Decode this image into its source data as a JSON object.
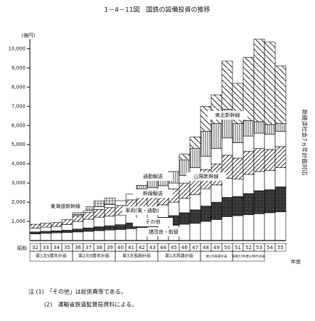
{
  "chart_data": {
    "type": "stacked-step",
    "title": "1－4－11図　国鉄の設備投資の推移",
    "y_unit": "(億円)",
    "x_prefix": "昭和",
    "x_suffix": "年度",
    "side_note": "新経済社会7ヵ年計画対応",
    "notes": [
      "注 (1)　「その他」は総係費等である。",
      "(2)　運輸省鉄道監督局資料による。"
    ],
    "plans": [
      "第1次5箇年計画",
      "第2次5箇年計画",
      "第3次長期計画",
      "第1次再建計画",
      "第2次再建計画",
      "昭和53年度以降の計画"
    ],
    "categories": [
      "32",
      "33",
      "34",
      "35",
      "36",
      "37",
      "38",
      "39",
      "40",
      "41",
      "42",
      "43",
      "44",
      "45",
      "46",
      "47",
      "48",
      "49",
      "50",
      "51",
      "52",
      "53",
      "54",
      "55"
    ],
    "ylim": [
      0,
      10500
    ],
    "yticks": [
      {
        "value": 1000,
        "label": "1,000"
      },
      {
        "value": 2000,
        "label": "2,000"
      },
      {
        "value": 3000,
        "label": "3,000"
      },
      {
        "value": 4000,
        "label": "4,000"
      },
      {
        "value": 5000,
        "label": "5,000"
      },
      {
        "value": 6000,
        "label": "6,000"
      },
      {
        "value": 7000,
        "label": "7,000"
      },
      {
        "value": 8000,
        "label": "8,000"
      },
      {
        "value": 9000,
        "label": "9,000"
      },
      {
        "value": 10000,
        "label": "10,000"
      }
    ],
    "series": [
      {
        "name": "諸改良・取替",
        "pattern": "white",
        "values": [
          350,
          380,
          400,
          420,
          450,
          480,
          520,
          550,
          580,
          620,
          680,
          720,
          760,
          800,
          850,
          900,
          1000,
          1100,
          1250,
          1300,
          1350,
          1400,
          1450,
          1500
        ]
      },
      {
        "name": "その他",
        "pattern": "dots",
        "values": [
          100,
          100,
          110,
          120,
          150,
          180,
          200,
          220,
          250,
          300,
          350,
          400,
          450,
          500,
          600,
          700,
          800,
          900,
          1000,
          1000,
          1100,
          1200,
          1200,
          1300
        ]
      },
      {
        "name": "車両(電・通勤)",
        "pattern": "white",
        "values": [
          200,
          220,
          230,
          300,
          400,
          450,
          500,
          500,
          500,
          600,
          650,
          650,
          650,
          700,
          750,
          800,
          900,
          900,
          1000,
          900,
          1000,
          1000,
          1000,
          1000
        ]
      },
      {
        "name": "幹線輸送",
        "pattern": "diag",
        "values": [
          200,
          200,
          200,
          250,
          300,
          350,
          400,
          450,
          500,
          600,
          700,
          700,
          700,
          700,
          800,
          900,
          1000,
          1100,
          1200,
          1100,
          1200,
          1200,
          1100,
          1100
        ]
      },
      {
        "name": "通勤輸送",
        "pattern": "white",
        "values": [
          0,
          0,
          0,
          0,
          50,
          100,
          150,
          150,
          250,
          300,
          300,
          300,
          300,
          300,
          400,
          500,
          700,
          800,
          900,
          800,
          800,
          800,
          800,
          800
        ]
      },
      {
        "name": "東海道新幹線",
        "pattern": "cross",
        "values": [
          0,
          0,
          0,
          0,
          100,
          200,
          300,
          350,
          0,
          0,
          0,
          0,
          0,
          0,
          0,
          0,
          0,
          0,
          0,
          0,
          0,
          0,
          0,
          0
        ]
      },
      {
        "name": "山陽新幹線",
        "pattern": "vert",
        "values": [
          0,
          0,
          0,
          0,
          0,
          0,
          0,
          0,
          0,
          0,
          200,
          400,
          500,
          600,
          800,
          1000,
          1300,
          1300,
          1500,
          1000,
          800,
          600,
          500,
          400
        ]
      },
      {
        "name": "東北新幹線",
        "pattern": "diag2",
        "values": [
          0,
          0,
          0,
          0,
          0,
          0,
          0,
          0,
          0,
          0,
          0,
          0,
          0,
          0,
          300,
          600,
          1300,
          1500,
          2500,
          2100,
          3300,
          4300,
          4300,
          3000
        ]
      }
    ]
  }
}
